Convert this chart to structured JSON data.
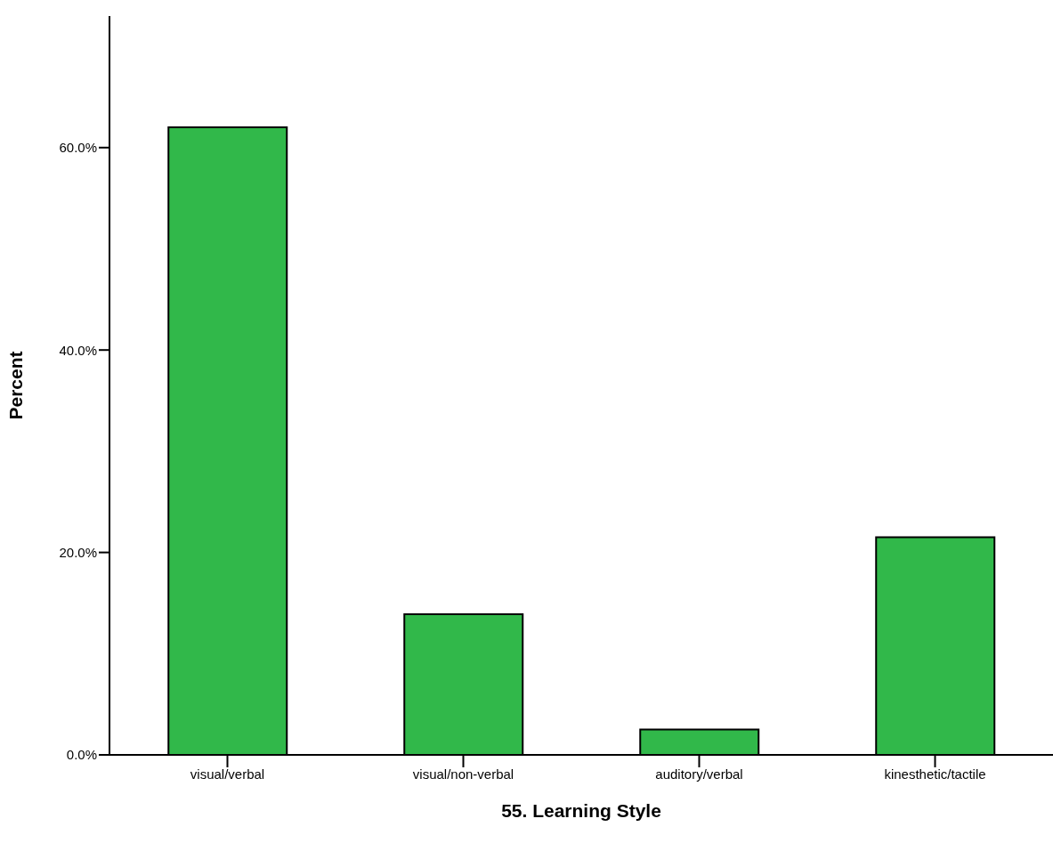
{
  "chart_data": {
    "type": "bar",
    "categories": [
      "visual/verbal",
      "visual/non-verbal",
      "auditory/verbal",
      "kinesthetic/tactile"
    ],
    "values": [
      62.0,
      13.9,
      2.5,
      21.5
    ],
    "color": "#31b84a",
    "xlabel": "55. Learning Style",
    "ylabel": "Percent",
    "ylim": [
      0,
      73
    ],
    "yticks": [
      {
        "value": 0,
        "label": "0.0%"
      },
      {
        "value": 20,
        "label": "20.0%"
      },
      {
        "value": 40,
        "label": "40.0%"
      },
      {
        "value": 60,
        "label": "60.0%"
      }
    ],
    "grid": false,
    "legend": false
  }
}
